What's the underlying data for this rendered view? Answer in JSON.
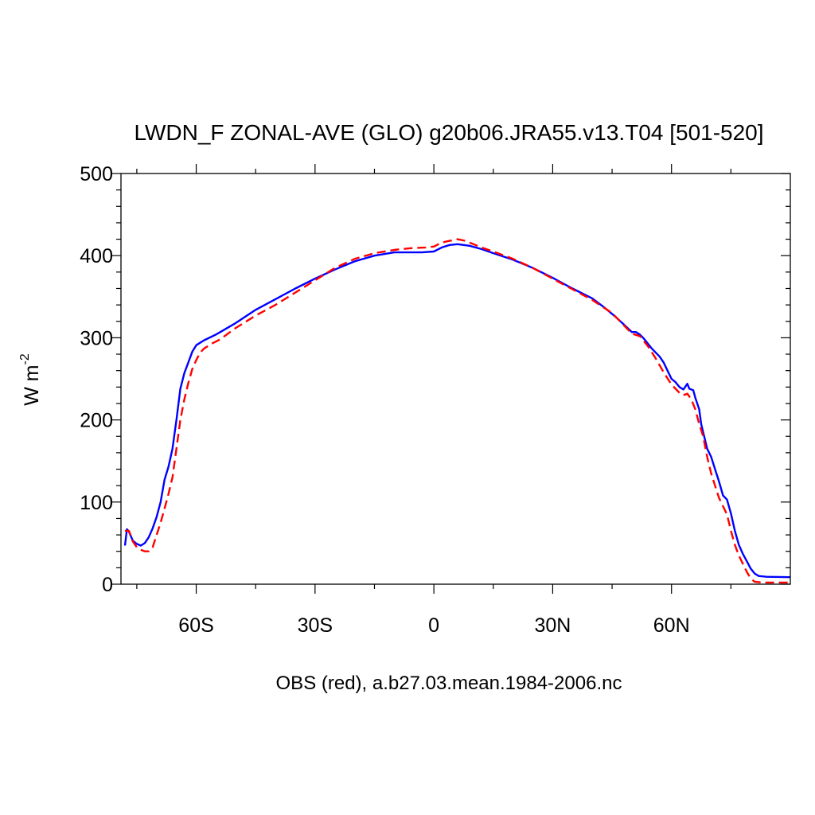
{
  "chart_data": {
    "type": "line",
    "title": "LWDN_F ZONAL-AVE (GLO) g20b06.JRA55.v13.T04 [501-520]",
    "subtitle": "OBS (red), a.b27.03.mean.1984-2006.nc",
    "ylabel": "W m",
    "ylabel_exponent": "-2",
    "xlim": [
      -79,
      90
    ],
    "ylim": [
      0,
      500
    ],
    "x_ticks": [
      {
        "value": -60,
        "label": "60S"
      },
      {
        "value": -30,
        "label": "30S"
      },
      {
        "value": 0,
        "label": "0"
      },
      {
        "value": 30,
        "label": "30N"
      },
      {
        "value": 60,
        "label": "60N"
      }
    ],
    "y_ticks": [
      {
        "value": 0,
        "label": "0"
      },
      {
        "value": 100,
        "label": "100"
      },
      {
        "value": 200,
        "label": "200"
      },
      {
        "value": 300,
        "label": "300"
      },
      {
        "value": 400,
        "label": "400"
      },
      {
        "value": 500,
        "label": "500"
      }
    ],
    "grid": false,
    "series": [
      {
        "color": "#0000ff",
        "style": "solid",
        "points": [
          [
            -78,
            47
          ],
          [
            -77.5,
            67
          ],
          [
            -77,
            64
          ],
          [
            -76,
            53
          ],
          [
            -75,
            49
          ],
          [
            -74,
            47
          ],
          [
            -73,
            50
          ],
          [
            -72,
            57
          ],
          [
            -71,
            68
          ],
          [
            -70,
            82
          ],
          [
            -69,
            100
          ],
          [
            -68,
            127
          ],
          [
            -67,
            143
          ],
          [
            -66,
            165
          ],
          [
            -65,
            200
          ],
          [
            -64,
            238
          ],
          [
            -63,
            257
          ],
          [
            -62,
            270
          ],
          [
            -61,
            283
          ],
          [
            -60,
            291
          ],
          [
            -58,
            297
          ],
          [
            -55,
            304
          ],
          [
            -50,
            318
          ],
          [
            -45,
            334
          ],
          [
            -40,
            347
          ],
          [
            -35,
            360
          ],
          [
            -30,
            372
          ],
          [
            -25,
            383
          ],
          [
            -20,
            393
          ],
          [
            -15,
            400
          ],
          [
            -10,
            404
          ],
          [
            -6,
            404
          ],
          [
            -3,
            404
          ],
          [
            0,
            405
          ],
          [
            2,
            410
          ],
          [
            4,
            413
          ],
          [
            6,
            414
          ],
          [
            9,
            412
          ],
          [
            12,
            408
          ],
          [
            15,
            403
          ],
          [
            20,
            395
          ],
          [
            25,
            385
          ],
          [
            30,
            373
          ],
          [
            35,
            360
          ],
          [
            40,
            348
          ],
          [
            43,
            337
          ],
          [
            46,
            325
          ],
          [
            48,
            316
          ],
          [
            50,
            307
          ],
          [
            51,
            307
          ],
          [
            52,
            304
          ],
          [
            53,
            299
          ],
          [
            55,
            287
          ],
          [
            57,
            277
          ],
          [
            58,
            270
          ],
          [
            59,
            260
          ],
          [
            60,
            250
          ],
          [
            61,
            246
          ],
          [
            62,
            240
          ],
          [
            63,
            237
          ],
          [
            64,
            244
          ],
          [
            64.5,
            238
          ],
          [
            65,
            237
          ],
          [
            65.5,
            236
          ],
          [
            66,
            227
          ],
          [
            67,
            213
          ],
          [
            67.5,
            195
          ],
          [
            68,
            185
          ],
          [
            69,
            165
          ],
          [
            70,
            155
          ],
          [
            71,
            140
          ],
          [
            72,
            125
          ],
          [
            73,
            108
          ],
          [
            74,
            103
          ],
          [
            75,
            86
          ],
          [
            76,
            65
          ],
          [
            77,
            48
          ],
          [
            78,
            37
          ],
          [
            79,
            28
          ],
          [
            80,
            19
          ],
          [
            81,
            13
          ],
          [
            82,
            10
          ],
          [
            84,
            9
          ],
          [
            90,
            8.5
          ]
        ]
      },
      {
        "color": "#ff0000",
        "style": "dashed",
        "points": [
          [
            -78,
            65
          ],
          [
            -77,
            65
          ],
          [
            -76,
            52
          ],
          [
            -75,
            45
          ],
          [
            -74,
            42
          ],
          [
            -73,
            40
          ],
          [
            -72,
            40
          ],
          [
            -71,
            45
          ],
          [
            -70,
            60
          ],
          [
            -69,
            75
          ],
          [
            -68,
            92
          ],
          [
            -67,
            110
          ],
          [
            -66,
            130
          ],
          [
            -65,
            165
          ],
          [
            -64,
            200
          ],
          [
            -63,
            225
          ],
          [
            -62,
            245
          ],
          [
            -61,
            262
          ],
          [
            -60,
            273
          ],
          [
            -59,
            282
          ],
          [
            -58,
            287
          ],
          [
            -56,
            293
          ],
          [
            -54,
            298
          ],
          [
            -50,
            312
          ],
          [
            -45,
            327
          ],
          [
            -40,
            340
          ],
          [
            -35,
            355
          ],
          [
            -30,
            370
          ],
          [
            -25,
            385
          ],
          [
            -20,
            396
          ],
          [
            -15,
            403
          ],
          [
            -10,
            407
          ],
          [
            -6,
            409
          ],
          [
            -2,
            410
          ],
          [
            0,
            411
          ],
          [
            2,
            416
          ],
          [
            4,
            418
          ],
          [
            6,
            420
          ],
          [
            8,
            418
          ],
          [
            12,
            410
          ],
          [
            15,
            405
          ],
          [
            20,
            396
          ],
          [
            25,
            385
          ],
          [
            30,
            372
          ],
          [
            35,
            359
          ],
          [
            40,
            346
          ],
          [
            45,
            330
          ],
          [
            50,
            305
          ],
          [
            52,
            302
          ],
          [
            54,
            290
          ],
          [
            56,
            275
          ],
          [
            58,
            258
          ],
          [
            60,
            243
          ],
          [
            62,
            233
          ],
          [
            63,
            230
          ],
          [
            64,
            232
          ],
          [
            65,
            225
          ],
          [
            66,
            213
          ],
          [
            67,
            195
          ],
          [
            68,
            180
          ],
          [
            69,
            155
          ],
          [
            70,
            135
          ],
          [
            71,
            120
          ],
          [
            72,
            105
          ],
          [
            73,
            95
          ],
          [
            74,
            85
          ],
          [
            75,
            65
          ],
          [
            76,
            48
          ],
          [
            77,
            35
          ],
          [
            78,
            25
          ],
          [
            79,
            15
          ],
          [
            80,
            7
          ],
          [
            81,
            3
          ],
          [
            83,
            2
          ],
          [
            90,
            2
          ]
        ]
      }
    ]
  }
}
